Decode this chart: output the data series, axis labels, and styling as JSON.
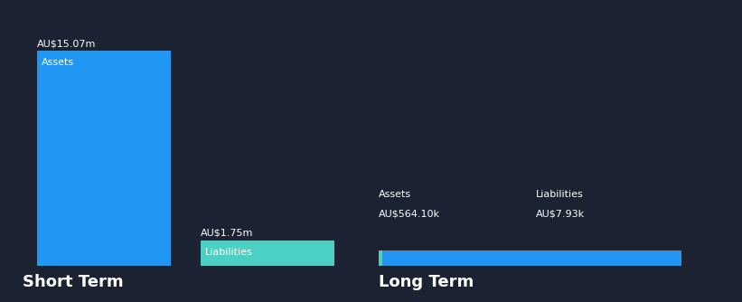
{
  "background_color": "#1b2232",
  "short_term": {
    "assets_value": 15070.0,
    "assets_label": "AU$15.07m",
    "assets_color": "#2196f3",
    "liabilities_value": 1750.0,
    "liabilities_label": "AU$1.75m",
    "liabilities_color": "#4dd0c4",
    "assets_bar_label": "Assets",
    "liabilities_bar_label": "Liabilities",
    "section_label": "Short Term"
  },
  "long_term": {
    "assets_value": 564.1,
    "assets_label": "AU$564.10k",
    "assets_color": "#2196f3",
    "liabilities_value": 7.93,
    "liabilities_label": "AU$7.93k",
    "liabilities_color": "#4dd0c4",
    "assets_bar_label": "Assets",
    "liabilities_bar_label": "Liabilities",
    "section_label": "Long Term"
  },
  "text_color": "#ffffff",
  "section_fontsize": 13,
  "value_fontsize": 8,
  "bar_label_fontsize": 8,
  "bar_inner_label_fontsize": 8
}
